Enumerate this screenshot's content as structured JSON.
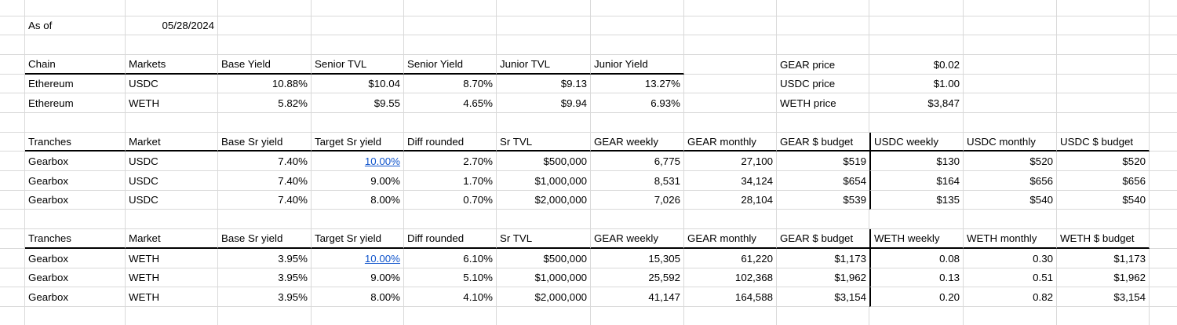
{
  "meta": {
    "as_of_label": "As of",
    "as_of_date": "05/28/2024"
  },
  "colors": {
    "background": "#ffffff",
    "text": "#000000",
    "gridline": "#d9d9d9",
    "border": "#000000",
    "link": "#1155cc"
  },
  "market_table": {
    "headers": [
      "Chain",
      "Markets",
      "Base Yield",
      "Senior TVL",
      "Senior Yield",
      "Junior TVL",
      "Junior Yield"
    ],
    "rows": [
      [
        "Ethereum",
        "USDC",
        "10.88%",
        "$10.04",
        "8.70%",
        "$9.13",
        "13.27%"
      ],
      [
        "Ethereum",
        "WETH",
        "5.82%",
        "$9.55",
        "4.65%",
        "$9.94",
        "6.93%"
      ]
    ]
  },
  "prices": [
    {
      "label": "GEAR price",
      "value": "$0.02"
    },
    {
      "label": "USDC price",
      "value": "$1.00"
    },
    {
      "label": "WETH price",
      "value": "$3,847"
    }
  ],
  "usdc_tranche_table": {
    "headers": [
      "Tranches",
      "Market",
      "Base Sr yield",
      "Target Sr yield",
      "Diff rounded",
      "Sr TVL",
      "GEAR weekly",
      "GEAR monthly",
      "GEAR $ budget",
      "USDC weekly",
      "USDC monthly",
      "USDC $ budget"
    ],
    "rows": [
      [
        "Gearbox",
        "USDC",
        "7.40%",
        "10.00%",
        "2.70%",
        "$500,000",
        "6,775",
        "27,100",
        "$519",
        "$130",
        "$520",
        "$520"
      ],
      [
        "Gearbox",
        "USDC",
        "7.40%",
        "9.00%",
        "1.70%",
        "$1,000,000",
        "8,531",
        "34,124",
        "$654",
        "$164",
        "$656",
        "$656"
      ],
      [
        "Gearbox",
        "USDC",
        "7.40%",
        "8.00%",
        "0.70%",
        "$2,000,000",
        "7,026",
        "28,104",
        "$539",
        "$135",
        "$540",
        "$540"
      ]
    ],
    "link_cell": {
      "row": 0,
      "col": 3
    }
  },
  "weth_tranche_table": {
    "headers": [
      "Tranches",
      "Market",
      "Base Sr yield",
      "Target Sr yield",
      "Diff rounded",
      "Sr TVL",
      "GEAR weekly",
      "GEAR monthly",
      "GEAR $ budget",
      "WETH weekly",
      "WETH monthly",
      "WETH $ budget"
    ],
    "rows": [
      [
        "Gearbox",
        "WETH",
        "3.95%",
        "10.00%",
        "6.10%",
        "$500,000",
        "15,305",
        "61,220",
        "$1,173",
        "0.08",
        "0.30",
        "$1,173"
      ],
      [
        "Gearbox",
        "WETH",
        "3.95%",
        "9.00%",
        "5.10%",
        "$1,000,000",
        "25,592",
        "102,368",
        "$1,962",
        "0.13",
        "0.51",
        "$1,962"
      ],
      [
        "Gearbox",
        "WETH",
        "3.95%",
        "8.00%",
        "4.10%",
        "$2,000,000",
        "41,147",
        "164,588",
        "$3,154",
        "0.20",
        "0.82",
        "$3,154"
      ]
    ],
    "link_cell": {
      "row": 0,
      "col": 3
    }
  }
}
